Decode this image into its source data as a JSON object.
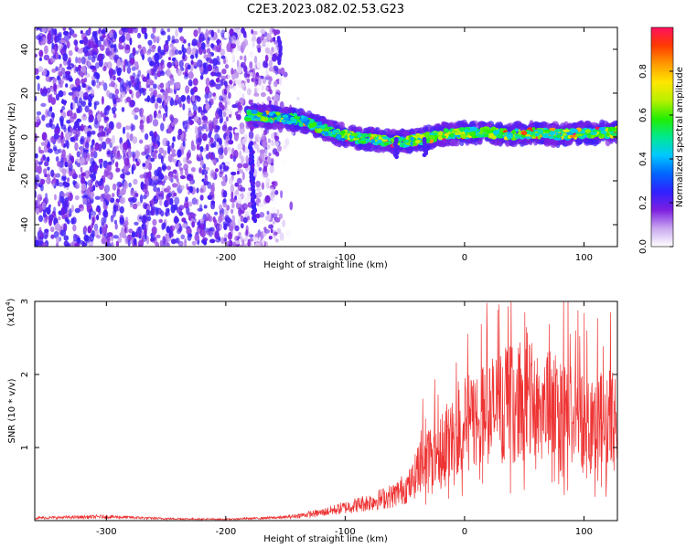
{
  "chart_data": [
    {
      "type": "heatmap",
      "title": "C2E3.2023.082.02.53.G23",
      "xlabel": "Height of straight line (km)",
      "ylabel": "Frequency (Hz)",
      "xlim": [
        -360,
        128
      ],
      "ylim": [
        -50,
        50
      ],
      "xticks": [
        -300,
        -200,
        -100,
        0,
        100
      ],
      "yticks": [
        -40,
        -20,
        0,
        20,
        40
      ],
      "colorbar": {
        "label": "Normalized spectral amplitude",
        "range": [
          0,
          1
        ],
        "ticks": [
          "0.0",
          "0.2",
          "0.4",
          "0.6",
          "0.8"
        ],
        "tick_values": [
          0.0,
          0.2,
          0.4,
          0.6,
          0.8
        ],
        "colors": [
          "#ffffff",
          "#c9a8f0",
          "#7d1fe0",
          "#3020ff",
          "#0066ff",
          "#00c8ff",
          "#00e890",
          "#22ee00",
          "#b8f000",
          "#ffe600",
          "#ff9a00",
          "#ff3a00",
          "#ff1060"
        ]
      },
      "features": {
        "noise_region_x": [
          -360,
          -155
        ],
        "signal_track": [
          {
            "x": -182,
            "y": 10
          },
          {
            "x": -160,
            "y": 9
          },
          {
            "x": -140,
            "y": 8
          },
          {
            "x": -125,
            "y": 5
          },
          {
            "x": -110,
            "y": 2
          },
          {
            "x": -95,
            "y": 0
          },
          {
            "x": -80,
            "y": -1
          },
          {
            "x": -65,
            "y": -2
          },
          {
            "x": -50,
            "y": -2
          },
          {
            "x": -35,
            "y": -1
          },
          {
            "x": -20,
            "y": 1
          },
          {
            "x": 0,
            "y": 2
          },
          {
            "x": 20,
            "y": 2
          },
          {
            "x": 40,
            "y": 1
          },
          {
            "x": 60,
            "y": 2
          },
          {
            "x": 80,
            "y": 1
          },
          {
            "x": 100,
            "y": 2
          },
          {
            "x": 128,
            "y": 2
          }
        ]
      }
    },
    {
      "type": "line",
      "xlabel": "Height of straight line (km)",
      "ylabel": "SNR (10 * v/v)",
      "y_multiplier": "(x10",
      "y_multiplier_exp": "4",
      "y_multiplier_close": ")",
      "xlim": [
        -360,
        128
      ],
      "ylim": [
        0,
        3
      ],
      "xticks": [
        -300,
        -200,
        -100,
        0,
        100
      ],
      "yticks": [
        1,
        2,
        3
      ],
      "color": "#ee3333",
      "envelope": [
        {
          "x": -360,
          "y": 0.04
        },
        {
          "x": -300,
          "y": 0.06
        },
        {
          "x": -250,
          "y": 0.03
        },
        {
          "x": -200,
          "y": 0.02
        },
        {
          "x": -150,
          "y": 0.05
        },
        {
          "x": -120,
          "y": 0.12
        },
        {
          "x": -100,
          "y": 0.2
        },
        {
          "x": -80,
          "y": 0.28
        },
        {
          "x": -60,
          "y": 0.38
        },
        {
          "x": -45,
          "y": 0.55
        },
        {
          "x": -35,
          "y": 0.9
        },
        {
          "x": -25,
          "y": 1.1
        },
        {
          "x": -10,
          "y": 1.25
        },
        {
          "x": 0,
          "y": 1.45
        },
        {
          "x": 15,
          "y": 1.6
        },
        {
          "x": 30,
          "y": 1.75
        },
        {
          "x": 50,
          "y": 1.8
        },
        {
          "x": 70,
          "y": 1.75
        },
        {
          "x": 90,
          "y": 1.6
        },
        {
          "x": 110,
          "y": 1.55
        },
        {
          "x": 128,
          "y": 1.5
        }
      ]
    }
  ]
}
